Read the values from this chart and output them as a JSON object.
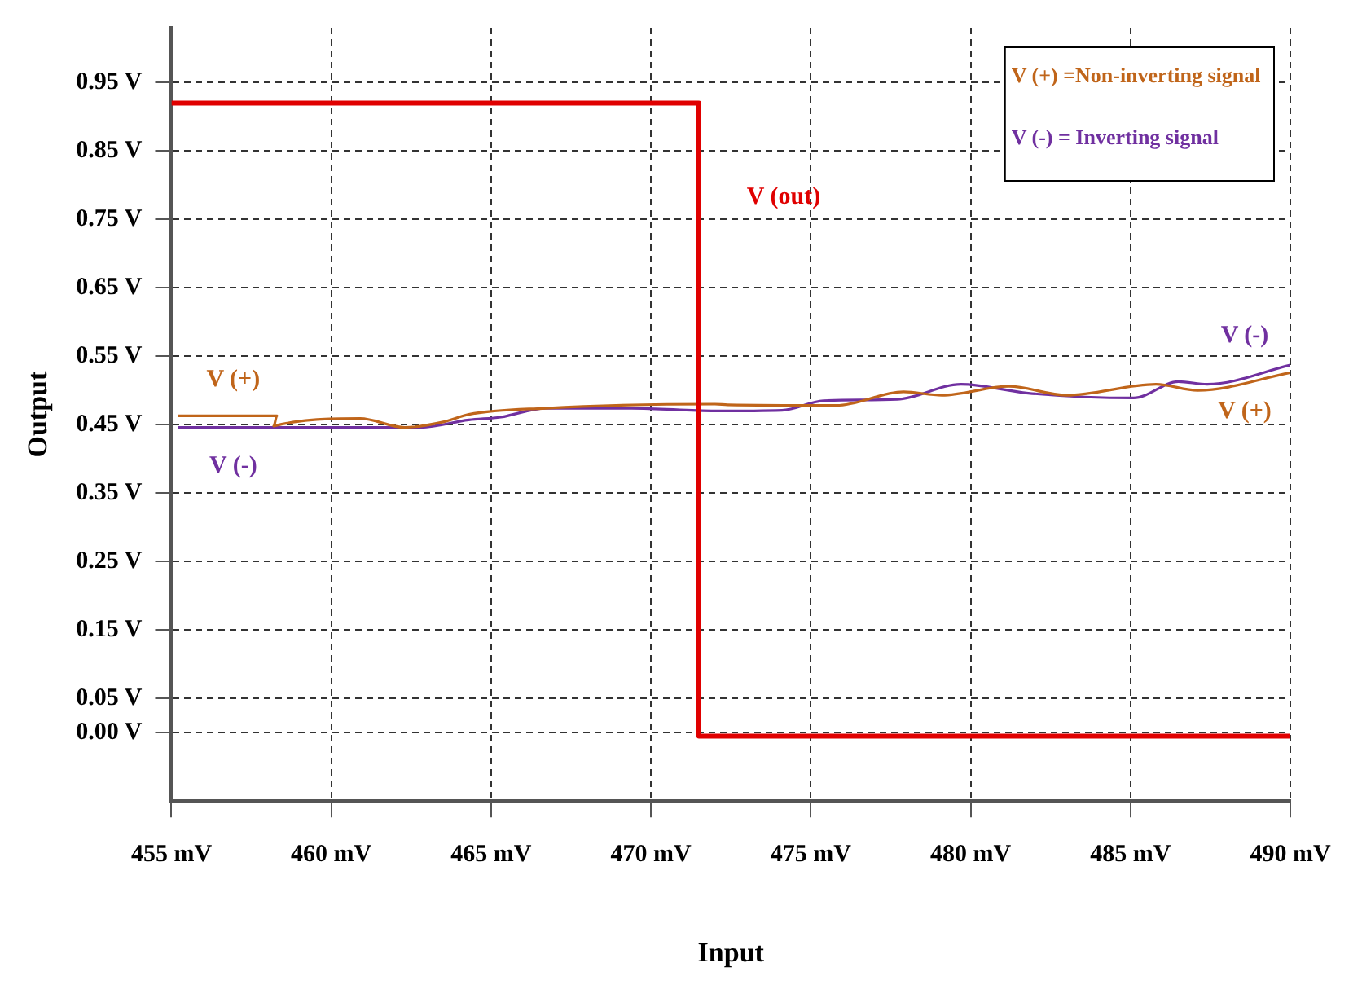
{
  "chart_data": {
    "type": "line",
    "xlabel": "Input",
    "ylabel": "Output",
    "xlim": [
      455,
      490
    ],
    "ylim": [
      -0.1,
      1.03
    ],
    "xticks": [
      {
        "value": 455,
        "label": "455 mV"
      },
      {
        "value": 460,
        "label": "460 mV"
      },
      {
        "value": 465,
        "label": "465 mV"
      },
      {
        "value": 470,
        "label": "470 mV"
      },
      {
        "value": 475,
        "label": "475 mV"
      },
      {
        "value": 480,
        "label": "480 mV"
      },
      {
        "value": 485,
        "label": "485 mV"
      },
      {
        "value": 490,
        "label": "490 mV"
      }
    ],
    "yticks": [
      {
        "value": 0,
        "label": "0.00 V"
      },
      {
        "value": 0.05,
        "label": "0.05 V"
      },
      {
        "value": 0.15,
        "label": "0.15 V"
      },
      {
        "value": 0.25,
        "label": "0.25 V"
      },
      {
        "value": 0.35,
        "label": "0.35 V"
      },
      {
        "value": 0.45,
        "label": "0.45 V"
      },
      {
        "value": 0.55,
        "label": "0.55 V"
      },
      {
        "value": 0.65,
        "label": "0.65 V"
      },
      {
        "value": 0.75,
        "label": "0.75 V"
      },
      {
        "value": 0.85,
        "label": "0.85 V"
      },
      {
        "value": 0.95,
        "label": "0.95 V"
      }
    ],
    "grid": true,
    "legend": false,
    "marker": "none",
    "line_style": "solid",
    "series": [
      {
        "name": "V (out)",
        "color": "#e00000",
        "x": [
          455,
          471.5,
          471.5,
          490
        ],
        "values": [
          0.92,
          0.92,
          -0.005,
          -0.005
        ]
      },
      {
        "name": "V (+)",
        "color": "#c0651a",
        "x": [
          455.2,
          458.3,
          458.2,
          460.9,
          462.3,
          463.5,
          464.3,
          466.7,
          472.0,
          472.4,
          475.8,
          477.9,
          479.1,
          481.2,
          483.0,
          485.8,
          487.1,
          490
        ],
        "values": [
          0.463,
          0.463,
          0.448,
          0.459,
          0.446,
          0.454,
          0.465,
          0.474,
          0.48,
          0.479,
          0.478,
          0.498,
          0.493,
          0.506,
          0.493,
          0.509,
          0.5,
          0.526
        ]
      },
      {
        "name": "V (-)",
        "color": "#7030a0",
        "x": [
          455.2,
          462.8,
          464.3,
          465.3,
          466.7,
          469.4,
          472.0,
          474.1,
          475.4,
          477.7,
          479.7,
          481.8,
          485.1,
          486.5,
          487.4,
          490
        ],
        "values": [
          0.446,
          0.446,
          0.457,
          0.461,
          0.474,
          0.474,
          0.47,
          0.471,
          0.485,
          0.487,
          0.509,
          0.496,
          0.489,
          0.513,
          0.509,
          0.537
        ]
      }
    ],
    "annotations": [
      "V (+) =Non-inverting signal",
      "V (-) = Inverting signal"
    ]
  }
}
